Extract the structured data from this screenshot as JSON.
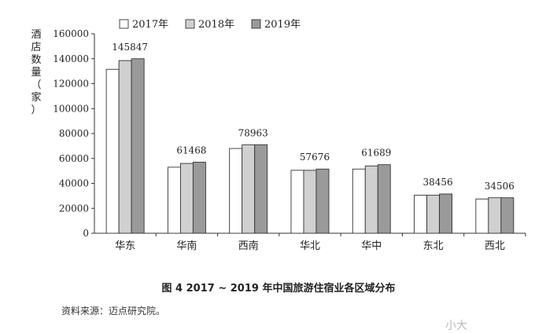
{
  "chart_data": {
    "type": "bar",
    "title": "",
    "ylabel": "酒店数量（家）",
    "xlabel": "",
    "ylim": [
      0,
      160000
    ],
    "yticks": [
      0,
      20000,
      40000,
      60000,
      80000,
      100000,
      120000,
      140000,
      160000
    ],
    "categories": [
      "华东",
      "华南",
      "西南",
      "华北",
      "华中",
      "东北",
      "西北"
    ],
    "series": [
      {
        "name": "2017年",
        "color": "#ffffff",
        "values": [
          131500,
          53000,
          68000,
          50500,
          51500,
          30500,
          27500
        ]
      },
      {
        "name": "2018年",
        "color": "#d0d0d0",
        "values": [
          138500,
          56000,
          71000,
          50500,
          54000,
          30500,
          28500
        ]
      },
      {
        "name": "2019年",
        "color": "#9a9a9a",
        "values": [
          140000,
          57000,
          71000,
          51500,
          55000,
          31500,
          28500
        ]
      }
    ],
    "data_labels": [
      "145847",
      "61468",
      "78963",
      "57676",
      "61689",
      "38456",
      "34506"
    ],
    "legend_position": "top",
    "grid": false
  },
  "caption": "图 4   2017 ~ 2019 年中国旅游住宿业各区域分布",
  "source": "资料来源：迈点研究院。",
  "watermark": "小大"
}
